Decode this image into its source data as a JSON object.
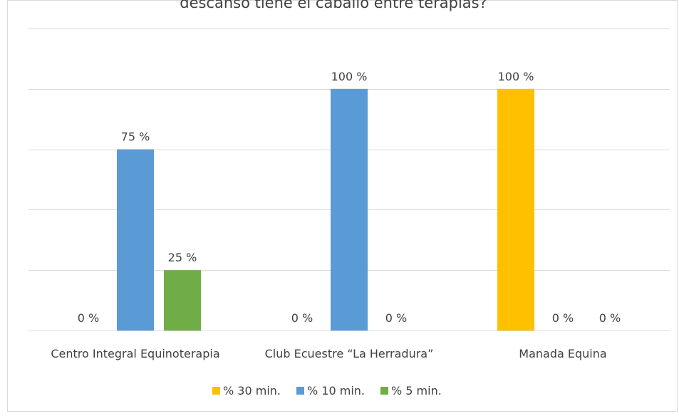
{
  "chart_data": {
    "type": "bar",
    "title": "descanso tiene el caballo entre terapias?",
    "categories": [
      "Centro Integral Equinoterapia",
      "Club Ecuestre “La Herradura”",
      "Manada Equina"
    ],
    "series": [
      {
        "name": "% 30 min.",
        "color": "#FFC000",
        "values": [
          0,
          0,
          100
        ],
        "labels": [
          "0 %",
          "0 %",
          "100 %"
        ]
      },
      {
        "name": "% 10 min.",
        "color": "#5B9BD5",
        "values": [
          75,
          100,
          0
        ],
        "labels": [
          "75 %",
          "100 %",
          "0 %"
        ]
      },
      {
        "name": "% 5  min.",
        "color": "#70AD47",
        "values": [
          25,
          0,
          0
        ],
        "labels": [
          "25 %",
          "0 %",
          "0 %"
        ]
      }
    ],
    "ylim": [
      0,
      125
    ],
    "gridlines": [
      0,
      25,
      50,
      75,
      100,
      125
    ],
    "grid": true,
    "legend_position": "bottom",
    "xlabel": "",
    "ylabel": ""
  }
}
